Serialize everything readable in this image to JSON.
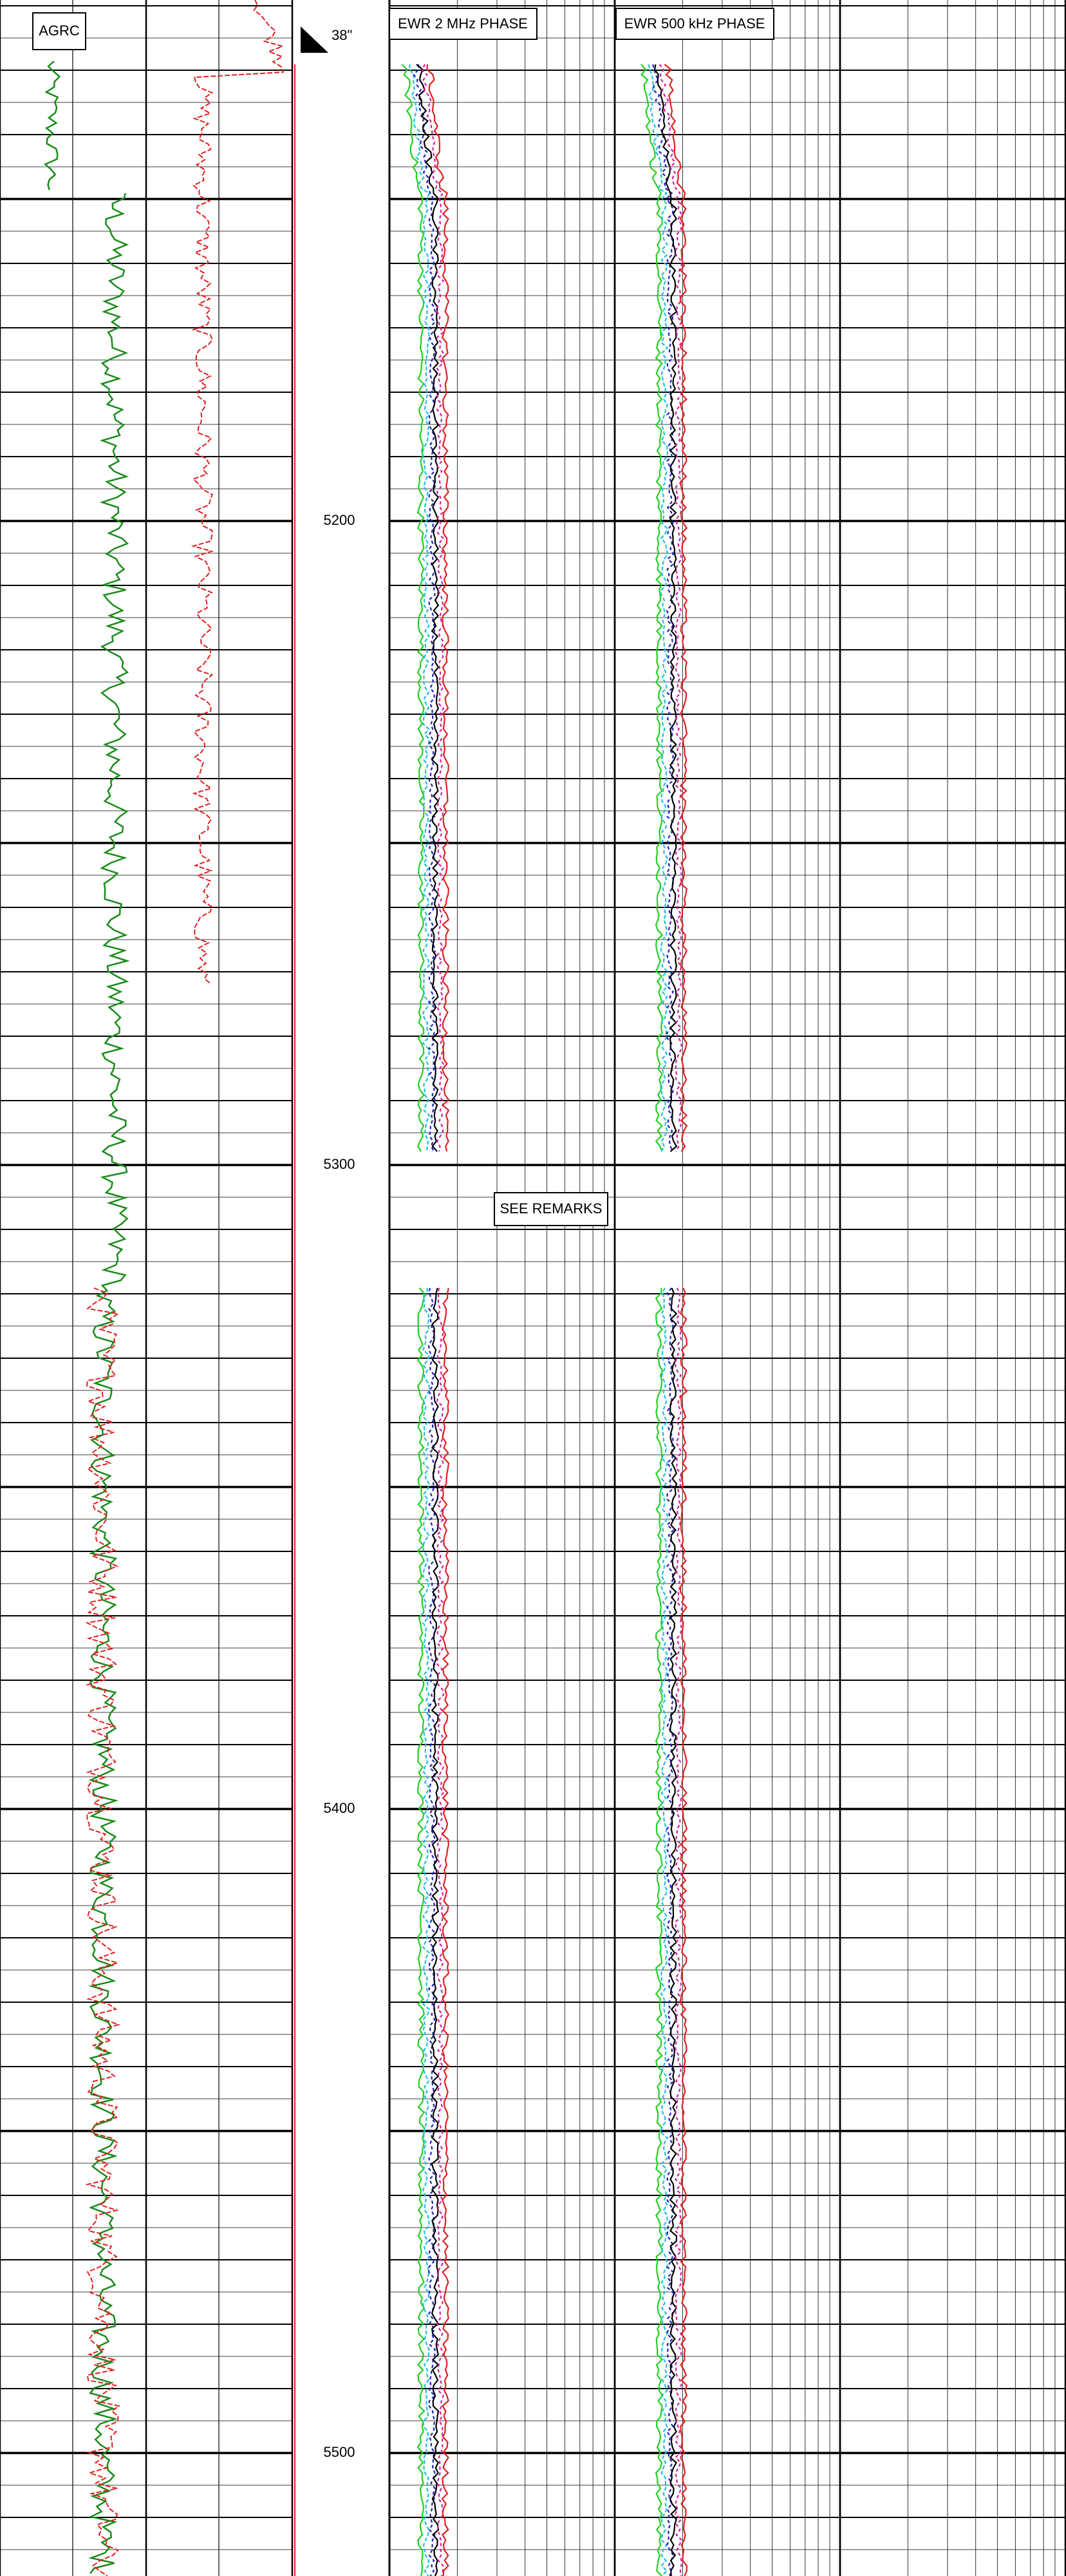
{
  "tracks": {
    "gamma": {
      "label": "AGRC"
    },
    "inclination": {
      "label": "38\""
    },
    "ewr_2mhz": {
      "label": "EWR 2 MHz PHASE"
    },
    "ewr_500khz": {
      "label": "EWR 500 kHz PHASE"
    }
  },
  "depth_labels": [
    5200,
    5300,
    5400,
    5500
  ],
  "remark": "SEE REMARKS"
}
